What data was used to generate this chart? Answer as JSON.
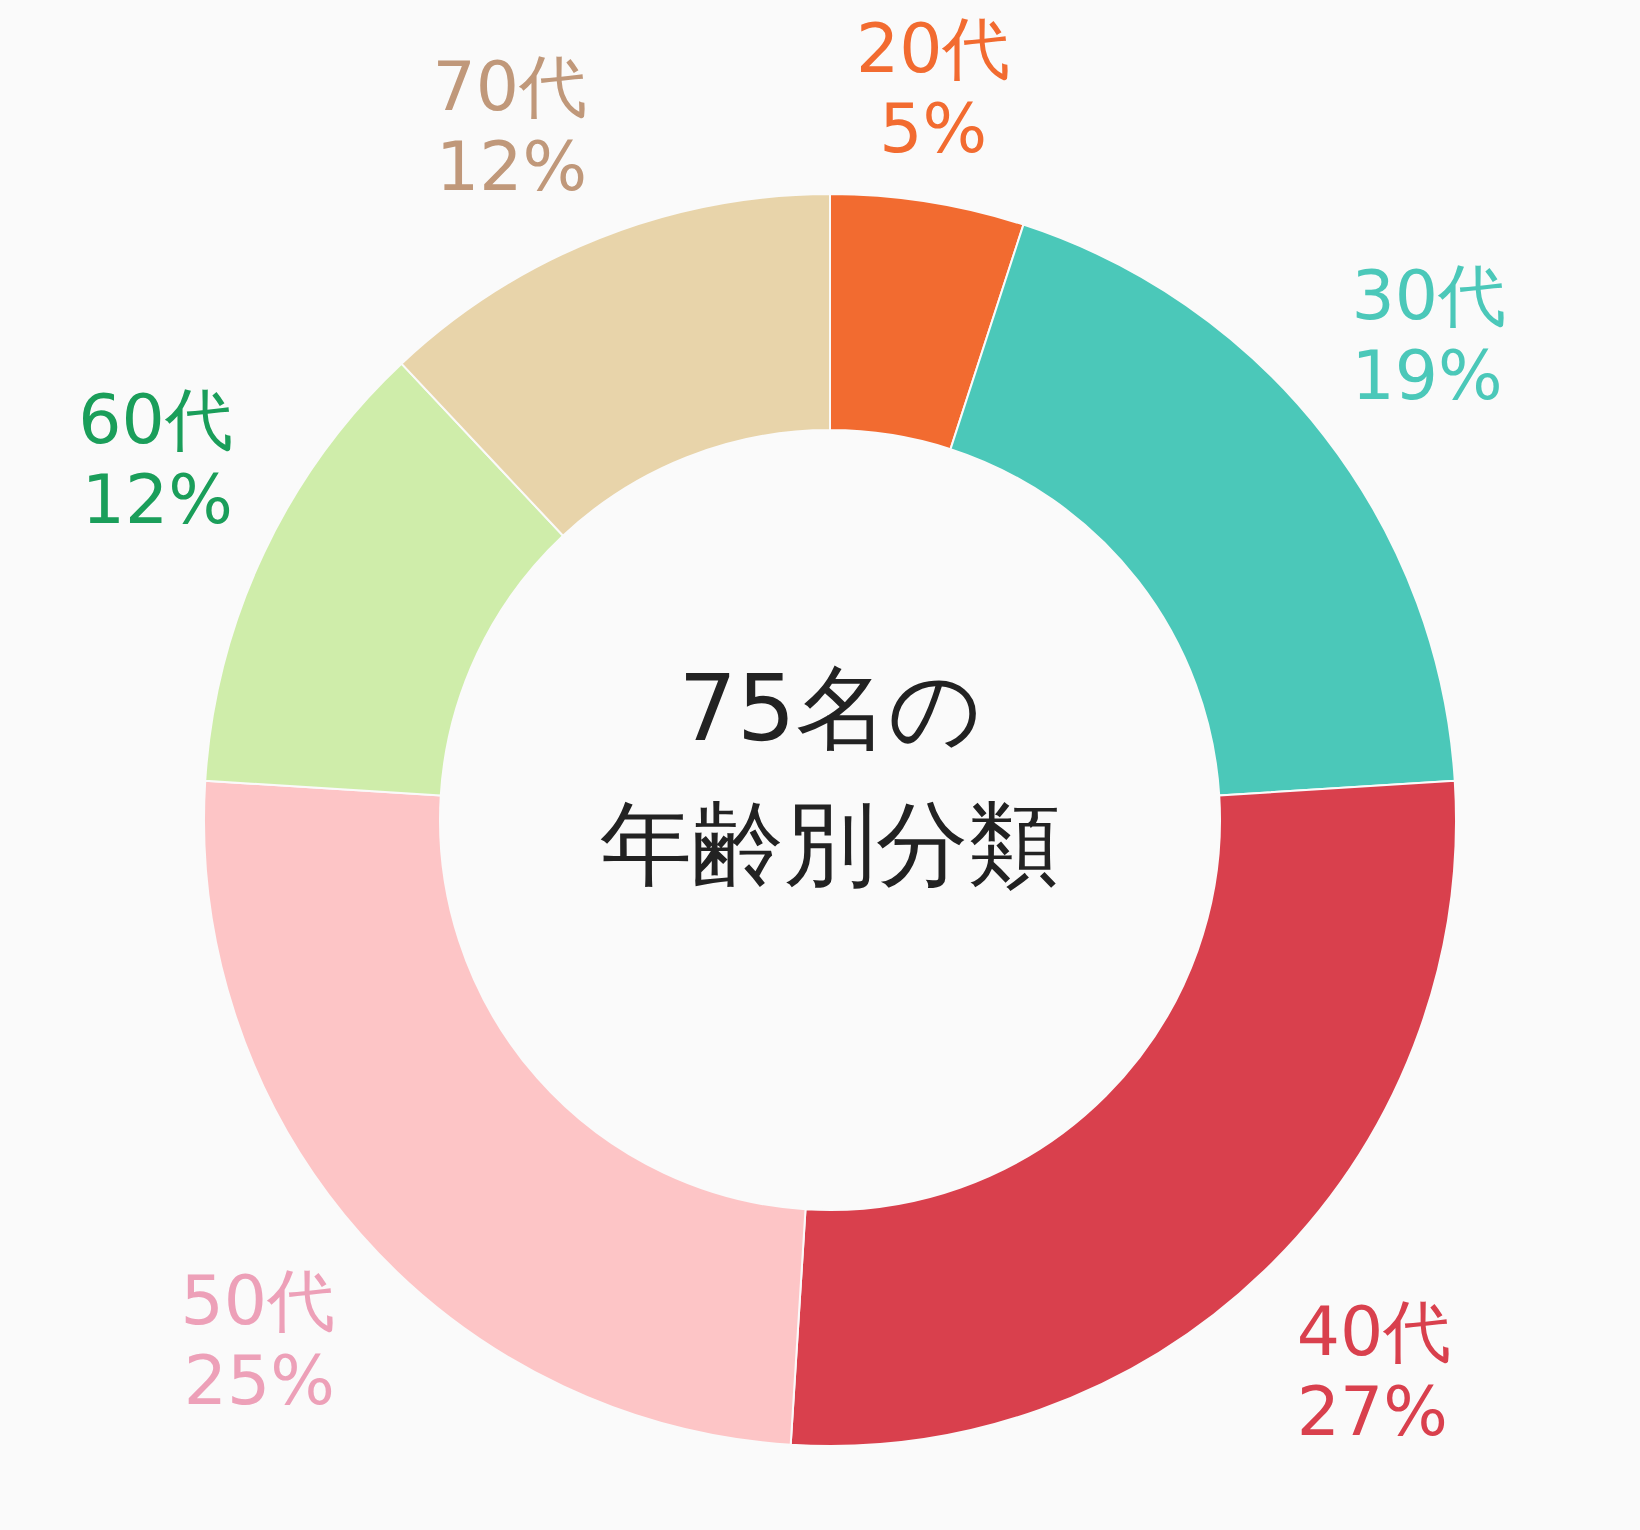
{
  "chart_data": {
    "type": "donut",
    "title": "75名の年齢別分類",
    "categories": [
      "20代",
      "30代",
      "40代",
      "50代",
      "60代",
      "70代"
    ],
    "values": [
      5,
      19,
      27,
      25,
      12,
      12
    ],
    "colors": [
      "#f26b30",
      "#4bc8b9",
      "#d9404d",
      "#fdc5c6",
      "#cfedaa",
      "#e8d4aa"
    ],
    "value_labels": [
      "5%",
      "19%",
      "27%",
      "25%",
      "12%",
      "12%"
    ],
    "legend": false
  }
}
